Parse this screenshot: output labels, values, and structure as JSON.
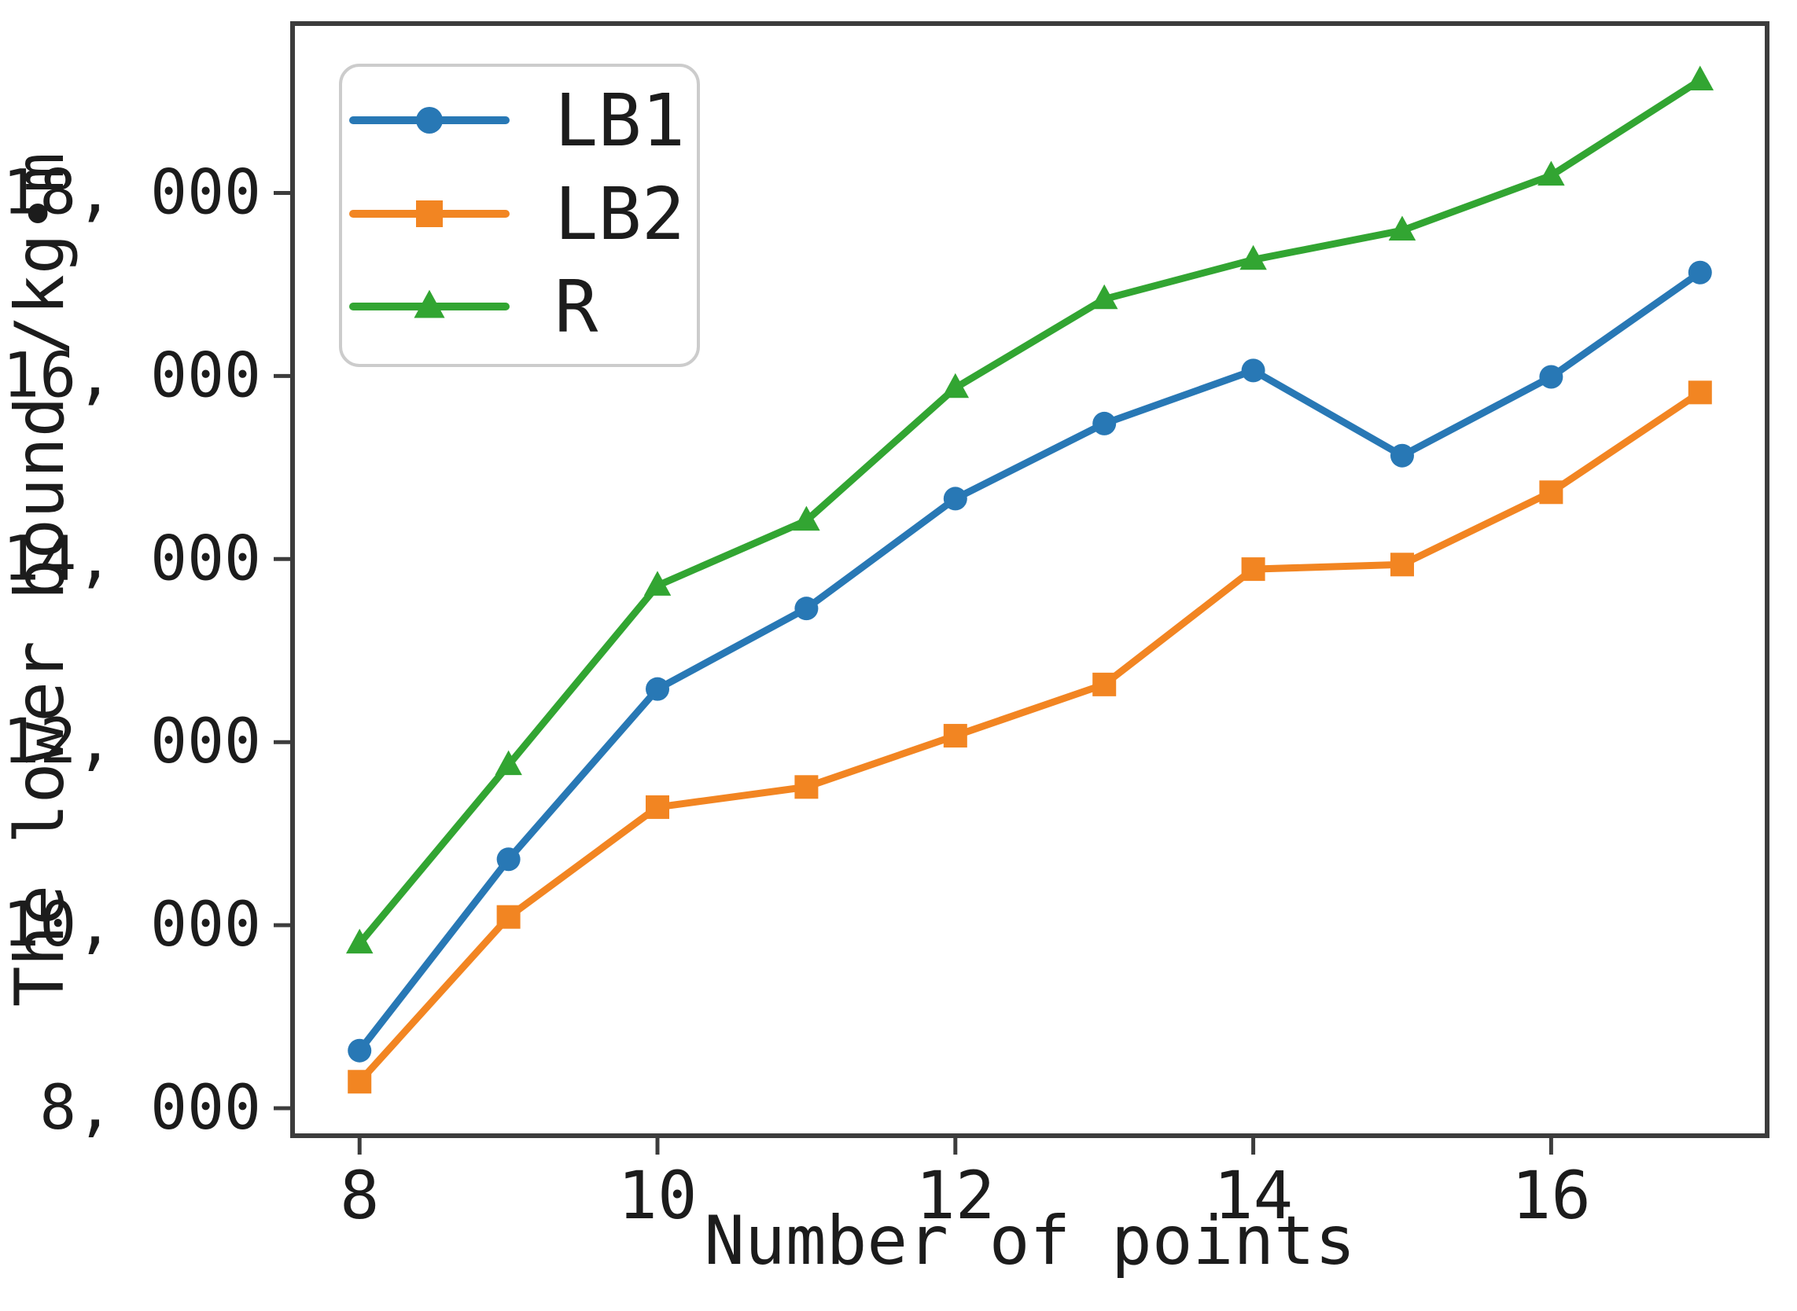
{
  "figure": {
    "background": "#ffffff"
  },
  "chart_data": {
    "type": "line",
    "title": "",
    "xlabel": "Number of points",
    "ylabel": "The lower bound /kg•m",
    "x": [
      8,
      9,
      10,
      11,
      12,
      13,
      14,
      15,
      16,
      17
    ],
    "series": [
      {
        "name": "LB1",
        "color": "#2878b5",
        "marker": "circle",
        "values": [
          8630,
          10720,
          12580,
          13460,
          14660,
          15480,
          16060,
          15130,
          15990,
          17130
        ]
      },
      {
        "name": "LB2",
        "color": "#f28522",
        "marker": "square",
        "values": [
          8290,
          10090,
          11290,
          11510,
          12070,
          12630,
          13890,
          13940,
          14730,
          15820
        ]
      },
      {
        "name": "R",
        "color": "#32a532",
        "marker": "triangle",
        "values": [
          9800,
          11750,
          13710,
          14420,
          15870,
          16840,
          17270,
          17590,
          18190,
          19230
        ]
      }
    ],
    "xlim": [
      7.55,
      17.45
    ],
    "ylim": [
      7700,
      19850
    ],
    "x_ticks": [
      {
        "value": 8,
        "label": "8"
      },
      {
        "value": 10,
        "label": "10"
      },
      {
        "value": 12,
        "label": "12"
      },
      {
        "value": 14,
        "label": "14"
      },
      {
        "value": 16,
        "label": "16"
      }
    ],
    "y_ticks": [
      {
        "value": 8000,
        "label": "8, 000"
      },
      {
        "value": 10000,
        "label": "10, 000"
      },
      {
        "value": 12000,
        "label": "12, 000"
      },
      {
        "value": 14000,
        "label": "14, 000"
      },
      {
        "value": 16000,
        "label": "16, 000"
      },
      {
        "value": 18000,
        "label": "18, 000"
      }
    ],
    "legend": {
      "position": "upper-left",
      "entries": [
        "LB1",
        "LB2",
        "R"
      ]
    },
    "grid": false,
    "colors": {
      "spine": "#3c3c3c",
      "text": "#1c1c1c",
      "legend_border": "#cccccc",
      "legend_background": "#ffffff"
    }
  }
}
